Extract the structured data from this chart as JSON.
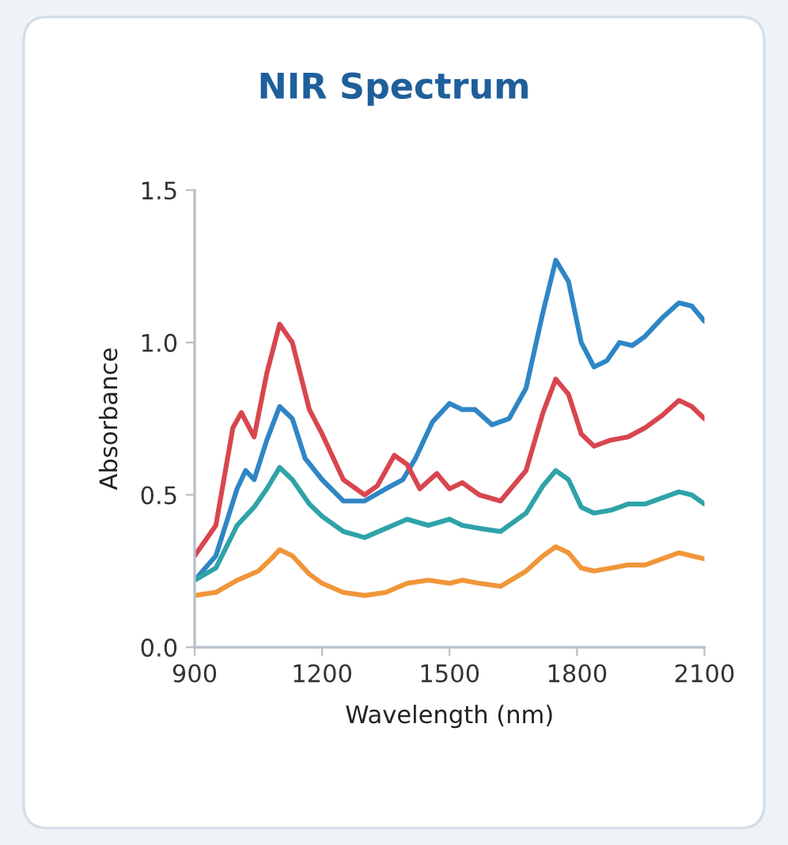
{
  "chart_data": {
    "type": "line",
    "title": "NIR Spectrum",
    "xlabel": "Wavelength (nm)",
    "ylabel": "Absorbance",
    "xlim": [
      900,
      2100
    ],
    "xticks": [
      900,
      1200,
      1500,
      1800,
      2100
    ],
    "ylim": [
      0.0,
      1.5
    ],
    "yticks": [
      {
        "value": 0.0,
        "label": "0.0"
      },
      {
        "value": 0.5,
        "label": "0.5"
      },
      {
        "value": 1.0,
        "label": "1.0"
      },
      {
        "value": 1.5,
        "label": "1.5"
      }
    ],
    "grid": false,
    "marker": "none",
    "line_style": "solid",
    "series": [
      {
        "color": "#2f86c4",
        "x": [
          900,
          950,
          1000,
          1020,
          1040,
          1070,
          1100,
          1130,
          1160,
          1200,
          1250,
          1300,
          1350,
          1390,
          1420,
          1460,
          1500,
          1530,
          1560,
          1600,
          1640,
          1680,
          1720,
          1750,
          1780,
          1810,
          1840,
          1870,
          1900,
          1930,
          1960,
          2000,
          2040,
          2070,
          2100
        ],
        "values": [
          0.22,
          0.3,
          0.52,
          0.58,
          0.55,
          0.68,
          0.79,
          0.75,
          0.62,
          0.55,
          0.48,
          0.48,
          0.52,
          0.55,
          0.62,
          0.74,
          0.8,
          0.78,
          0.78,
          0.73,
          0.75,
          0.85,
          1.1,
          1.27,
          1.2,
          1.0,
          0.92,
          0.94,
          1.0,
          0.99,
          1.02,
          1.08,
          1.13,
          1.12,
          1.07
        ]
      },
      {
        "color": "#d8464f",
        "x": [
          900,
          950,
          990,
          1010,
          1040,
          1070,
          1100,
          1130,
          1170,
          1200,
          1250,
          1300,
          1330,
          1370,
          1400,
          1430,
          1470,
          1500,
          1530,
          1570,
          1620,
          1680,
          1720,
          1750,
          1780,
          1810,
          1840,
          1880,
          1920,
          1960,
          2000,
          2040,
          2070,
          2100
        ],
        "values": [
          0.3,
          0.4,
          0.72,
          0.77,
          0.69,
          0.9,
          1.06,
          1.0,
          0.78,
          0.7,
          0.55,
          0.5,
          0.53,
          0.63,
          0.6,
          0.52,
          0.57,
          0.52,
          0.54,
          0.5,
          0.48,
          0.58,
          0.77,
          0.88,
          0.83,
          0.7,
          0.66,
          0.68,
          0.69,
          0.72,
          0.76,
          0.81,
          0.79,
          0.75
        ]
      },
      {
        "color": "#2ea3a8",
        "x": [
          900,
          950,
          1000,
          1040,
          1070,
          1100,
          1130,
          1170,
          1200,
          1250,
          1300,
          1350,
          1400,
          1450,
          1500,
          1530,
          1570,
          1620,
          1680,
          1720,
          1750,
          1780,
          1810,
          1840,
          1880,
          1920,
          1960,
          2000,
          2040,
          2070,
          2100
        ],
        "values": [
          0.22,
          0.26,
          0.4,
          0.46,
          0.52,
          0.59,
          0.55,
          0.47,
          0.43,
          0.38,
          0.36,
          0.39,
          0.42,
          0.4,
          0.42,
          0.4,
          0.39,
          0.38,
          0.44,
          0.53,
          0.58,
          0.55,
          0.46,
          0.44,
          0.45,
          0.47,
          0.47,
          0.49,
          0.51,
          0.5,
          0.47
        ]
      },
      {
        "color": "#f0963a",
        "x": [
          900,
          950,
          1000,
          1050,
          1080,
          1100,
          1130,
          1170,
          1200,
          1250,
          1300,
          1350,
          1400,
          1450,
          1500,
          1530,
          1570,
          1620,
          1680,
          1720,
          1750,
          1780,
          1810,
          1840,
          1880,
          1920,
          1960,
          2000,
          2040,
          2070,
          2100
        ],
        "values": [
          0.17,
          0.18,
          0.22,
          0.25,
          0.29,
          0.32,
          0.3,
          0.24,
          0.21,
          0.18,
          0.17,
          0.18,
          0.21,
          0.22,
          0.21,
          0.22,
          0.21,
          0.2,
          0.25,
          0.3,
          0.33,
          0.31,
          0.26,
          0.25,
          0.26,
          0.27,
          0.27,
          0.29,
          0.31,
          0.3,
          0.29
        ]
      }
    ]
  }
}
